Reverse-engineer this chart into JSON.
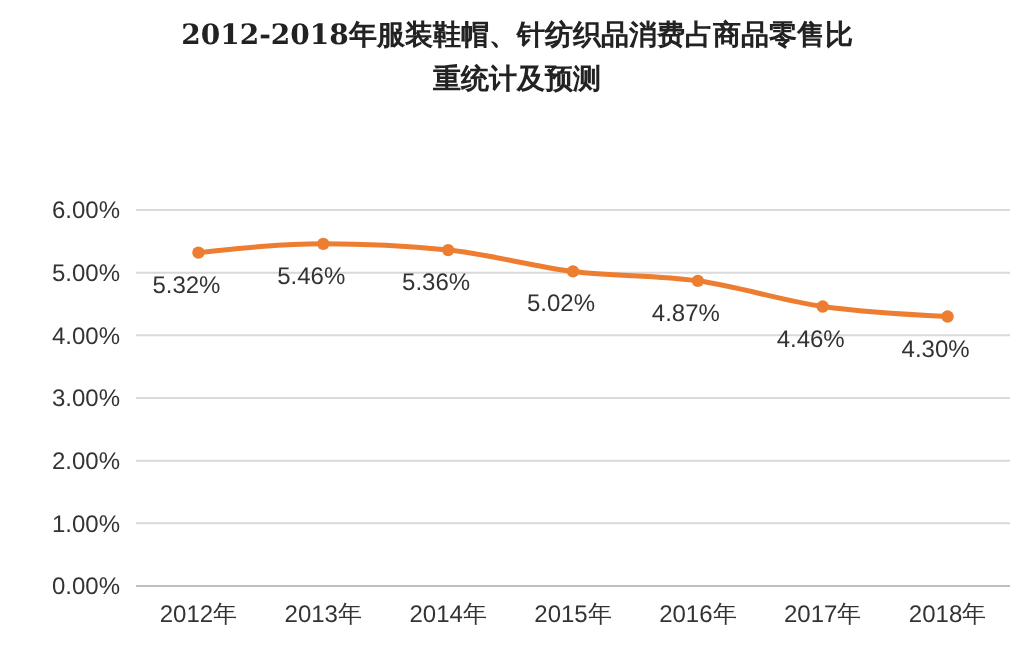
{
  "chart_data": {
    "type": "line",
    "title": "2012-2018年服装鞋帽、针纺织品消费占商品零售比重统计及预测",
    "categories": [
      "2012年",
      "2013年",
      "2014年",
      "2015年",
      "2016年",
      "2017年",
      "2018年"
    ],
    "series": [
      {
        "color": "#ed7d31",
        "values": [
          5.32,
          5.46,
          5.36,
          5.02,
          4.87,
          4.46,
          4.3
        ],
        "value_labels": [
          "5.32%",
          "5.46%",
          "5.36%",
          "5.02%",
          "4.87%",
          "4.46%",
          "4.30%"
        ]
      }
    ],
    "ylim": [
      0,
      6
    ],
    "yticks": [
      {
        "value": 0,
        "label": "0.00%"
      },
      {
        "value": 1,
        "label": "1.00%"
      },
      {
        "value": 2,
        "label": "2.00%"
      },
      {
        "value": 3,
        "label": "3.00%"
      },
      {
        "value": 4,
        "label": "4.00%"
      },
      {
        "value": 5,
        "label": "5.00%"
      },
      {
        "value": 6,
        "label": "6.00%"
      }
    ],
    "grid": "y",
    "marker": "circle",
    "line_style": "solid"
  }
}
